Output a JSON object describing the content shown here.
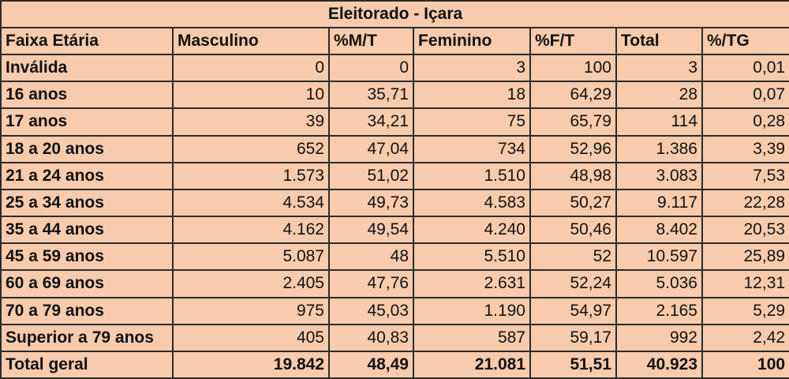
{
  "title": "Eleitorado - Içara",
  "headers": [
    "Faixa Etária",
    "Masculino",
    "%M/T",
    "Feminino",
    "%F/T",
    "Total",
    "%/TG"
  ],
  "rows": [
    [
      "Inválida",
      "0",
      "0",
      "3",
      "100",
      "3",
      "0,01"
    ],
    [
      "16 anos",
      "10",
      "35,71",
      "18",
      "64,29",
      "28",
      "0,07"
    ],
    [
      "17 anos",
      "39",
      "34,21",
      "75",
      "65,79",
      "114",
      "0,28"
    ],
    [
      "18 a 20 anos",
      "652",
      "47,04",
      "734",
      "52,96",
      "1.386",
      "3,39"
    ],
    [
      "21 a 24 anos",
      "1.573",
      "51,02",
      "1.510",
      "48,98",
      "3.083",
      "7,53"
    ],
    [
      "25 a 34 anos",
      "4.534",
      "49,73",
      "4.583",
      "50,27",
      "9.117",
      "22,28"
    ],
    [
      "35 a 44 anos",
      "4.162",
      "49,54",
      "4.240",
      "50,46",
      "8.402",
      "20,53"
    ],
    [
      "45 a 59 anos",
      "5.087",
      "48",
      "5.510",
      "52",
      "10.597",
      "25,89"
    ],
    [
      "60 a 69 anos",
      "2.405",
      "47,76",
      "2.631",
      "52,24",
      "5.036",
      "12,31"
    ],
    [
      "70 a 79 anos",
      "975",
      "45,03",
      "1.190",
      "54,97",
      "2.165",
      "5,29"
    ],
    [
      "Superior a 79 anos",
      "405",
      "40,83",
      "587",
      "59,17",
      "992",
      "2,42"
    ]
  ],
  "total_row": [
    "Total geral",
    "19.842",
    "48,49",
    "21.081",
    "51,51",
    "40.923",
    "100"
  ]
}
